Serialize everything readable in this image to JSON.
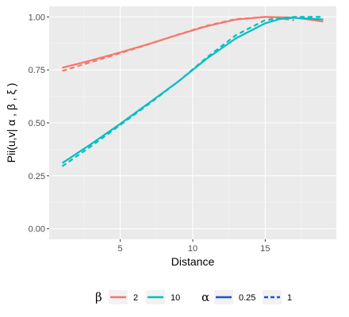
{
  "chart_data": {
    "type": "line",
    "xlabel": "Distance",
    "ylabel": "Pii(u,v| α , β , ξ )",
    "xlim": [
      0.1,
      19.9
    ],
    "ylim": [
      -0.05,
      1.05
    ],
    "x_ticks": [
      5,
      10,
      15
    ],
    "y_ticks": [
      0.0,
      0.25,
      0.5,
      0.75,
      1.0
    ],
    "x_tick_labels": [
      "5",
      "10",
      "15"
    ],
    "y_tick_labels": [
      "0.00",
      "0.25",
      "0.50",
      "0.75",
      "1.00"
    ],
    "grid": true,
    "legend_position": "bottom",
    "series": [
      {
        "beta": "2",
        "alpha": "0.25",
        "color": "#F8766D",
        "linetype": "solid",
        "x": [
          1,
          3,
          5,
          7,
          9,
          11,
          13,
          15,
          17,
          19
        ],
        "y": [
          0.76,
          0.795,
          0.833,
          0.873,
          0.916,
          0.957,
          0.988,
          1.0,
          0.997,
          0.978
        ]
      },
      {
        "beta": "2",
        "alpha": "1",
        "color": "#F8766D",
        "linetype": "dashed",
        "x": [
          1,
          3,
          5,
          7,
          9,
          11,
          13,
          15,
          17
        ],
        "y": [
          0.745,
          0.787,
          0.829,
          0.872,
          0.917,
          0.959,
          0.99,
          1.0,
          0.985
        ]
      },
      {
        "beta": "10",
        "alpha": "0.25",
        "color": "#00BFC4",
        "linetype": "solid",
        "x": [
          1,
          3,
          5,
          7,
          9,
          11,
          13,
          15,
          16,
          17,
          18,
          19
        ],
        "y": [
          0.31,
          0.4,
          0.495,
          0.595,
          0.695,
          0.805,
          0.9,
          0.97,
          0.99,
          0.996,
          0.992,
          0.988
        ]
      },
      {
        "beta": "10",
        "alpha": "1",
        "color": "#00BFC4",
        "linetype": "dashed",
        "x": [
          1,
          3,
          5,
          7,
          9,
          11,
          13,
          15,
          17,
          19
        ],
        "y": [
          0.295,
          0.39,
          0.49,
          0.59,
          0.695,
          0.81,
          0.915,
          0.985,
          1.0,
          1.0
        ]
      }
    ],
    "legend": {
      "beta_title": "β",
      "beta_items": [
        {
          "label": "2",
          "color": "#F8766D"
        },
        {
          "label": "10",
          "color": "#00BFC4"
        }
      ],
      "alpha_title": "α",
      "alpha_items": [
        {
          "label": "0.25",
          "color": "#1F4FE0",
          "linetype": "solid"
        },
        {
          "label": "1",
          "color": "#1F4FE0",
          "linetype": "dashed"
        }
      ]
    }
  }
}
